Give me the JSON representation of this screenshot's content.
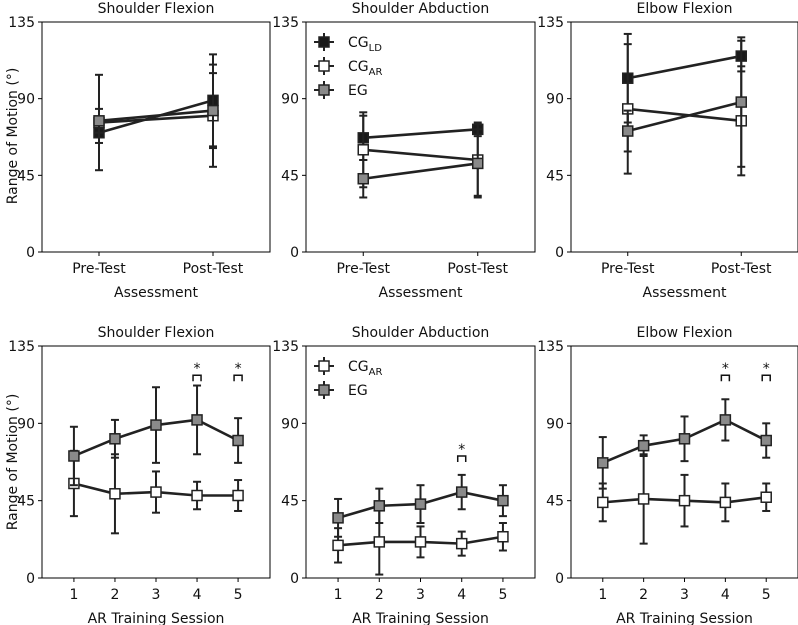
{
  "figure": {
    "y_axis_label": "Range of Motion (°)",
    "colors": {
      "cg_ld": "#1a1a1a",
      "cg_ar": "#ffffff",
      "eg": "#8a8a8a",
      "line": "#222222"
    }
  },
  "chart_data": [
    {
      "id": "top-shoulder-flexion",
      "type": "line",
      "title": "Shoulder Flexion",
      "xlabel": "Assessment",
      "ylabel": "Range of Motion (°)",
      "categories": [
        "Pre-Test",
        "Post-Test"
      ],
      "ylim": [
        0,
        135
      ],
      "yticks": [
        0,
        45,
        90,
        135
      ],
      "series": [
        {
          "name": "CG_LD",
          "style": "cg_ld",
          "values": [
            70,
            89
          ],
          "err": [
            6,
            27
          ]
        },
        {
          "name": "CG_AR",
          "style": "cg_ar",
          "values": [
            76,
            80
          ],
          "err": [
            28,
            30
          ]
        },
        {
          "name": "EG",
          "style": "eg",
          "values": [
            77,
            83
          ],
          "err": [
            7,
            22
          ]
        }
      ],
      "annotations": []
    },
    {
      "id": "top-shoulder-abduction",
      "type": "line",
      "title": "Shoulder Abduction",
      "xlabel": "Assessment",
      "ylabel": "",
      "categories": [
        "Pre-Test",
        "Post-Test"
      ],
      "ylim": [
        0,
        135
      ],
      "yticks": [
        0,
        45,
        90,
        135
      ],
      "legend": {
        "placement": "top-left",
        "entries": [
          {
            "base": "CG",
            "sub": "LD",
            "style": "cg_ld"
          },
          {
            "base": "CG",
            "sub": "AR",
            "style": "cg_ar"
          },
          {
            "base": "EG",
            "sub": "",
            "style": "eg"
          }
        ]
      },
      "series": [
        {
          "name": "CG_LD",
          "style": "cg_ld",
          "values": [
            67,
            72
          ],
          "err": [
            13,
            4
          ]
        },
        {
          "name": "CG_AR",
          "style": "cg_ar",
          "values": [
            60,
            54
          ],
          "err": [
            22,
            21
          ]
        },
        {
          "name": "EG",
          "style": "eg",
          "values": [
            43,
            52
          ],
          "err": [
            11,
            20
          ]
        }
      ],
      "annotations": []
    },
    {
      "id": "top-elbow-flexion",
      "type": "line",
      "title": "Elbow Flexion",
      "xlabel": "Assessment",
      "ylabel": "",
      "categories": [
        "Pre-Test",
        "Post-Test"
      ],
      "ylim": [
        0,
        135
      ],
      "yticks": [
        0,
        45,
        90,
        135
      ],
      "series": [
        {
          "name": "CG_LD",
          "style": "cg_ld",
          "values": [
            102,
            115
          ],
          "err": [
            26,
            9
          ]
        },
        {
          "name": "CG_AR",
          "style": "cg_ar",
          "values": [
            84,
            77
          ],
          "err": [
            38,
            32
          ]
        },
        {
          "name": "EG",
          "style": "eg",
          "values": [
            71,
            88
          ],
          "err": [
            12,
            38
          ]
        }
      ],
      "annotations": []
    },
    {
      "id": "bottom-shoulder-flexion",
      "type": "line",
      "title": "Shoulder Flexion",
      "xlabel": "AR Training Session",
      "ylabel": "Range of Motion (°)",
      "categories": [
        "1",
        "2",
        "3",
        "4",
        "5"
      ],
      "ylim": [
        0,
        135
      ],
      "yticks": [
        0,
        45,
        90,
        135
      ],
      "series": [
        {
          "name": "CG_AR",
          "style": "cg_ar",
          "values": [
            55,
            49,
            50,
            48,
            48
          ],
          "err": [
            19,
            23,
            12,
            8,
            9
          ]
        },
        {
          "name": "EG",
          "style": "eg",
          "values": [
            71,
            81,
            89,
            92,
            80
          ],
          "err": [
            17,
            11,
            22,
            20,
            13
          ]
        }
      ],
      "annotations": [
        {
          "x": 4,
          "y": 118,
          "text": "*"
        },
        {
          "x": 5,
          "y": 118,
          "text": "*"
        }
      ]
    },
    {
      "id": "bottom-shoulder-abduction",
      "type": "line",
      "title": "Shoulder Abduction",
      "xlabel": "AR Training Session",
      "ylabel": "",
      "categories": [
        "1",
        "2",
        "3",
        "4",
        "5"
      ],
      "ylim": [
        0,
        135
      ],
      "yticks": [
        0,
        45,
        90,
        135
      ],
      "legend": {
        "placement": "top-left",
        "entries": [
          {
            "base": "CG",
            "sub": "AR",
            "style": "cg_ar"
          },
          {
            "base": "EG",
            "sub": "",
            "style": "eg"
          }
        ]
      },
      "series": [
        {
          "name": "CG_AR",
          "style": "cg_ar",
          "values": [
            19,
            21,
            21,
            20,
            24
          ],
          "err": [
            10,
            19,
            9,
            7,
            8
          ]
        },
        {
          "name": "EG",
          "style": "eg",
          "values": [
            35,
            42,
            43,
            50,
            45
          ],
          "err": [
            11,
            10,
            11,
            10,
            9
          ]
        }
      ],
      "annotations": [
        {
          "x": 4,
          "y": 71,
          "text": "*"
        }
      ]
    },
    {
      "id": "bottom-elbow-flexion",
      "type": "line",
      "title": "Elbow Flexion",
      "xlabel": "AR Training Session",
      "ylabel": "",
      "categories": [
        "1",
        "2",
        "3",
        "4",
        "5"
      ],
      "ylim": [
        0,
        135
      ],
      "yticks": [
        0,
        45,
        90,
        135
      ],
      "series": [
        {
          "name": "CG_AR",
          "style": "cg_ar",
          "values": [
            44,
            46,
            45,
            44,
            47
          ],
          "err": [
            11,
            26,
            15,
            11,
            8
          ]
        },
        {
          "name": "EG",
          "style": "eg",
          "values": [
            67,
            77,
            81,
            92,
            80
          ],
          "err": [
            15,
            6,
            13,
            12,
            10
          ]
        }
      ],
      "annotations": [
        {
          "x": 4,
          "y": 118,
          "text": "*"
        },
        {
          "x": 5,
          "y": 118,
          "text": "*"
        }
      ]
    }
  ]
}
